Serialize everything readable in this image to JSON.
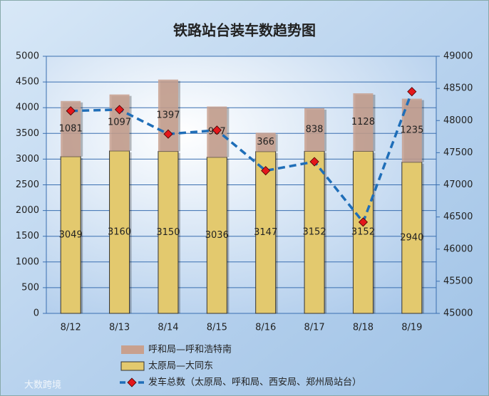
{
  "chart_data": {
    "type": "bar",
    "title": "铁路站台装车数趋势图",
    "categories": [
      "8/12",
      "8/13",
      "8/14",
      "8/15",
      "8/16",
      "8/17",
      "8/18",
      "8/19"
    ],
    "series": [
      {
        "name": "太原局—大同东",
        "color": "#e3c96e",
        "values": [
          3049,
          3160,
          3150,
          3036,
          3147,
          3152,
          3152,
          2940
        ]
      },
      {
        "name": "呼和局—呼和浩特南",
        "color": "#c8a08e",
        "values": [
          1081,
          1097,
          1397,
          987,
          366,
          838,
          1128,
          1235
        ]
      },
      {
        "name": "发车总数（太原局、呼和局、西安局、郑州局站台）",
        "color": "#1f6eb8",
        "marker_color": "#e3171b",
        "type": "line",
        "axis": "y2",
        "values": [
          48150,
          48170,
          47790,
          47850,
          47220,
          47360,
          46420,
          48450
        ]
      }
    ],
    "stacked": true,
    "ylim": [
      0,
      5000
    ],
    "yticks": [
      0,
      500,
      1000,
      1500,
      2000,
      2500,
      3000,
      3500,
      4000,
      4500,
      5000
    ],
    "y2lim": [
      45000,
      49000
    ],
    "y2ticks": [
      45000,
      45500,
      46000,
      46500,
      47000,
      47500,
      48000,
      48500,
      49000
    ],
    "grid": true,
    "legend": "bottom",
    "watermark": "大数跨境"
  }
}
